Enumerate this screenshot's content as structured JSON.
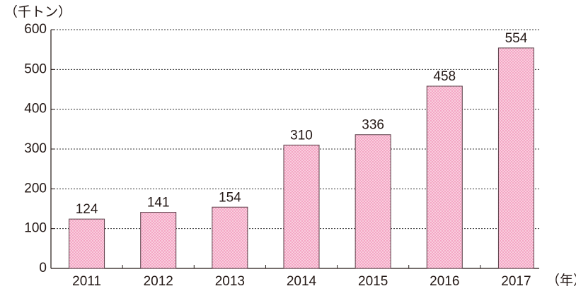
{
  "chart_data": {
    "type": "bar",
    "y_label": "（千トン）",
    "x_label": "（年）",
    "categories": [
      "2011",
      "2012",
      "2013",
      "2014",
      "2015",
      "2016",
      "2017"
    ],
    "values": [
      124,
      141,
      154,
      310,
      336,
      458,
      554
    ],
    "color": "#f4a6c4",
    "ylim": [
      0,
      600
    ],
    "yticks": [
      0,
      100,
      200,
      300,
      400,
      500,
      600
    ],
    "grid": true
  }
}
